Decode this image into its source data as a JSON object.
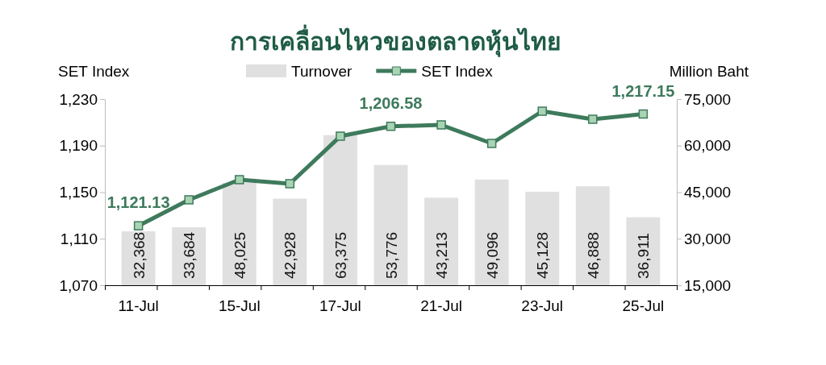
{
  "chart_data": {
    "type": "bar",
    "title": "การเคลื่อนไหวของตลาดหุ้นไทย",
    "ylabel": "SET Index",
    "y2label": "Million Baht",
    "categories": [
      "11-Jul",
      null,
      "15-Jul",
      null,
      "17-Jul",
      null,
      "21-Jul",
      null,
      "23-Jul",
      null,
      "25-Jul"
    ],
    "series": [
      {
        "name": "Turnover",
        "axis": "y2",
        "color": "#e0e0e0",
        "values": [
          32368,
          33684,
          48025,
          42928,
          63375,
          53776,
          43213,
          49096,
          45128,
          46888,
          36911
        ],
        "value_labels": [
          "32,368",
          "33,684",
          "48,025",
          "42,928",
          "63,375",
          "53,776",
          "43,213",
          "49,096",
          "45,128",
          "46,888",
          "36,911"
        ]
      },
      {
        "name": "SET Index",
        "type": "line",
        "color": "#3e7a5c",
        "values": [
          1121.13,
          1143.4,
          1160.7,
          1157.3,
          1198.1,
          1206.58,
          1207.8,
          1191.9,
          1219.6,
          1212.7,
          1217.15
        ],
        "value_labels": [
          "1,121.13",
          null,
          null,
          null,
          null,
          "1,206.58",
          null,
          null,
          null,
          null,
          "1,217.15"
        ]
      }
    ],
    "ylim": [
      1070,
      1230
    ],
    "yticks": [
      {
        "value": 1070,
        "label": "1,070"
      },
      {
        "value": 1110,
        "label": "1,110"
      },
      {
        "value": 1150,
        "label": "1,150"
      },
      {
        "value": 1190,
        "label": "1,190"
      },
      {
        "value": 1230,
        "label": "1,230"
      }
    ],
    "y2lim": [
      15000,
      75000
    ],
    "y2ticks": [
      {
        "value": 15000,
        "label": "15,000"
      },
      {
        "value": 30000,
        "label": "30,000"
      },
      {
        "value": 45000,
        "label": "45,000"
      },
      {
        "value": 60000,
        "label": "60,000"
      },
      {
        "value": 75000,
        "label": "75,000"
      }
    ],
    "legend": "top",
    "marker": "square",
    "grid": false
  }
}
